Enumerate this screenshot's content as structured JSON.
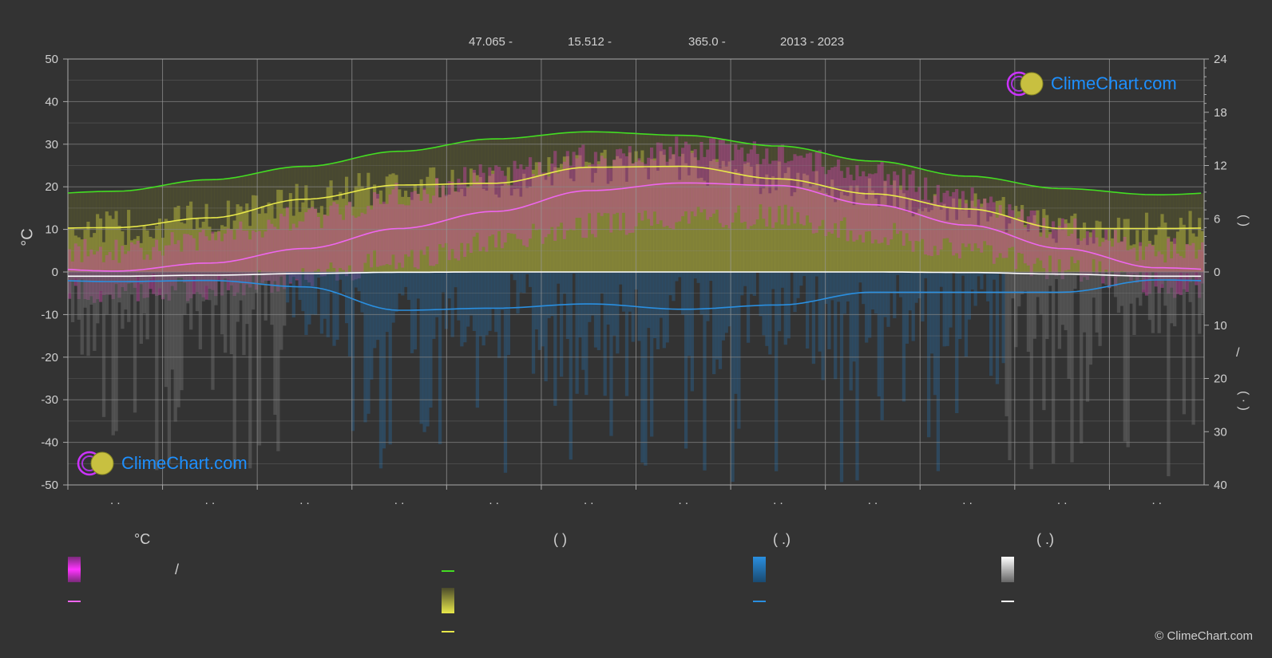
{
  "header": {
    "lat": "47.065 -",
    "lon": "15.512 -",
    "elev": "365.0 -",
    "years": "2013 - 2023"
  },
  "axes": {
    "left_label": "°C",
    "right_paren_top": "(      )",
    "right_slash": "/",
    "right_paren_bottom": "( ·  )"
  },
  "logo": {
    "text": "ClimeChart.com"
  },
  "copyright": "© ClimeChart.com",
  "legend": {
    "col1_head": "°C",
    "col1_text": "/",
    "col2_head": "(           )",
    "col3_head": "(   .)",
    "col4_head": "(   .)"
  },
  "colors": {
    "background": "#333333",
    "daylight": "#44dd22",
    "sunshine": "#e8e84a",
    "temp": "#ee66ee",
    "rain": "#2a8fe0",
    "snow": "#ffffff",
    "logo": "#1e90ff"
  },
  "chart_data": {
    "type": "area",
    "xlabel": "",
    "ylabel": "°C",
    "ylim": [
      -50,
      50
    ],
    "y_right_top_lim": [
      0,
      24
    ],
    "y_right_bottom_lim": [
      0,
      40
    ],
    "yticks_left": [
      "50",
      "40",
      "30",
      "20",
      "10",
      "0",
      "-10",
      "-20",
      "-30",
      "-40",
      "-50"
    ],
    "yticks_right_top": [
      "24",
      "18",
      "12",
      "6",
      "0"
    ],
    "yticks_right_bottom": [
      "10",
      "20",
      "30",
      "40"
    ],
    "x_tick_labels": [
      ". .",
      ". .",
      ". .",
      ". .",
      ". .",
      ". .",
      ". .",
      ". .",
      ". .",
      ". .",
      ". .",
      ". ."
    ],
    "months": [
      1,
      2,
      3,
      4,
      5,
      6,
      7,
      8,
      9,
      10,
      11,
      12
    ],
    "series": [
      {
        "key": "daylight",
        "axis": "right_top",
        "values": [
          9.1,
          10.4,
          11.9,
          13.6,
          15.0,
          15.8,
          15.4,
          14.2,
          12.5,
          10.8,
          9.4,
          8.7
        ]
      },
      {
        "key": "sunshine",
        "axis": "right_top",
        "values": [
          5.0,
          6.1,
          8.2,
          9.8,
          10.0,
          11.8,
          11.9,
          10.5,
          8.8,
          7.1,
          4.9,
          4.9
        ]
      },
      {
        "key": "temp_mean",
        "axis": "left",
        "values": [
          0.2,
          2.1,
          5.5,
          10.2,
          14.2,
          19.1,
          20.9,
          20.3,
          15.8,
          11.0,
          5.5,
          1.0
        ]
      },
      {
        "key": "temp_max",
        "axis": "left",
        "values": [
          5,
          8,
          13,
          18,
          23,
          27,
          29,
          28,
          23,
          17,
          10,
          5
        ]
      },
      {
        "key": "temp_min",
        "axis": "left",
        "values": [
          -5,
          -4,
          -1,
          3,
          7,
          11,
          13,
          13,
          9,
          5,
          1,
          -3
        ]
      },
      {
        "key": "rain",
        "axis": "right_bottom",
        "values": [
          1.8,
          1.6,
          2.8,
          7.2,
          6.8,
          6.0,
          7.0,
          6.2,
          3.8,
          3.8,
          3.8,
          1.5
        ]
      },
      {
        "key": "snow",
        "axis": "right_bottom",
        "values": [
          0.8,
          0.6,
          0.3,
          0.05,
          0,
          0,
          0,
          0,
          0,
          0.1,
          0.4,
          0.8
        ]
      }
    ],
    "grid": true
  }
}
